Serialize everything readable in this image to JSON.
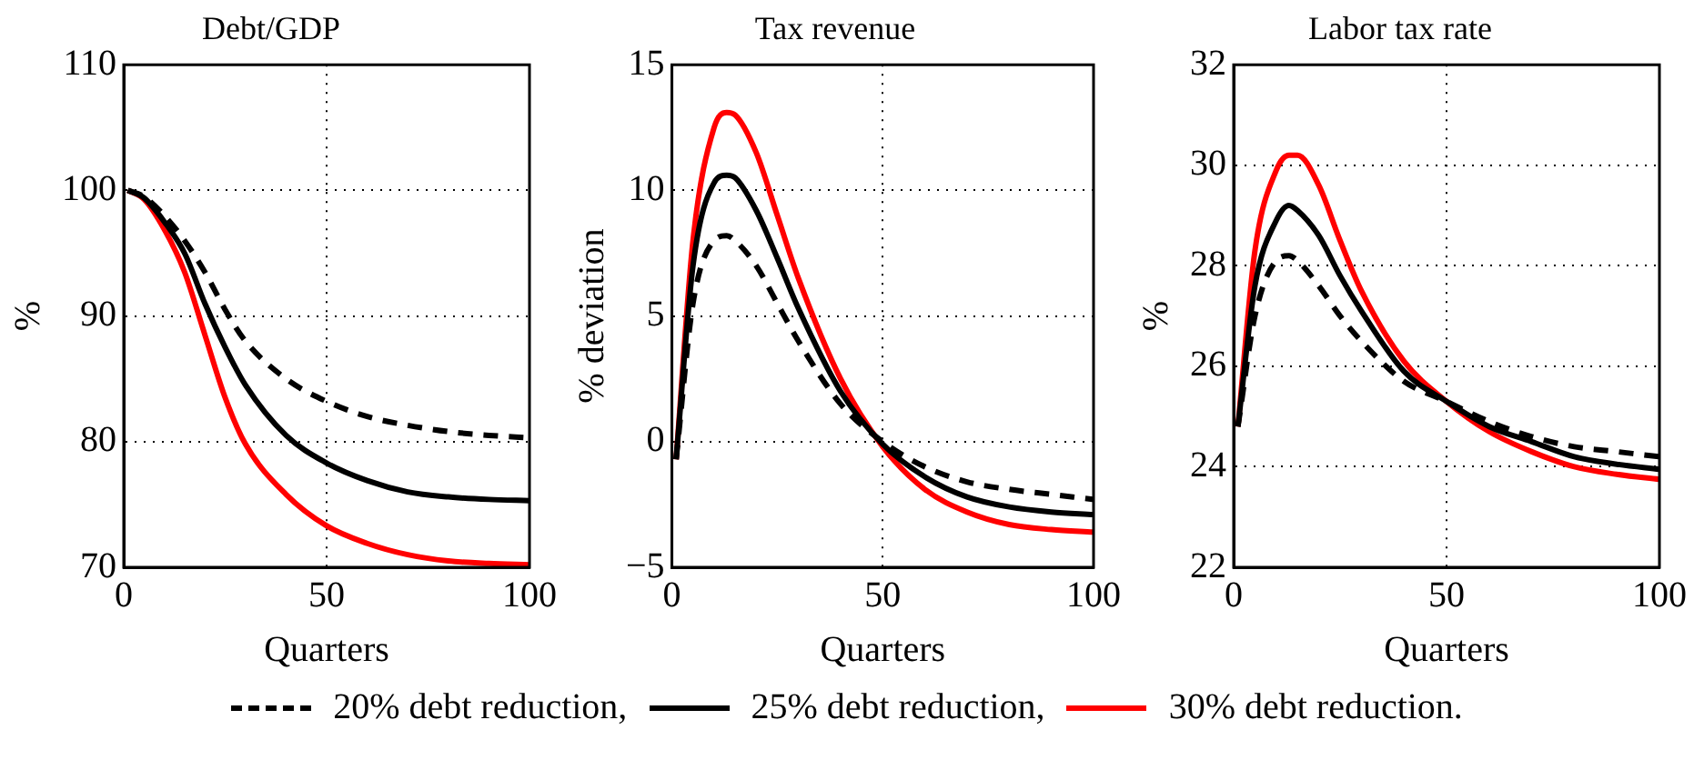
{
  "chart_data": [
    {
      "type": "line",
      "title": "Debt/GDP",
      "xlabel": "Quarters",
      "ylabel": "%",
      "x": [
        1,
        5,
        10,
        15,
        20,
        25,
        30,
        40,
        50,
        60,
        70,
        80,
        90,
        100
      ],
      "xlim": [
        0,
        100
      ],
      "xticks": [
        0,
        50,
        100
      ],
      "ylim": [
        70,
        110
      ],
      "yticks": [
        70,
        80,
        90,
        100,
        110
      ],
      "grid": true,
      "legend": "bottom",
      "marker": "none",
      "series": [
        {
          "name": "20% debt reduction,",
          "color": "#000000",
          "line_style": "dashed",
          "values": [
            100,
            99.5,
            98,
            96,
            93.5,
            90.5,
            88,
            85,
            83.2,
            82,
            81.3,
            80.8,
            80.5,
            80.3
          ]
        },
        {
          "name": "25% debt reduction,",
          "color": "#000000",
          "line_style": "solid",
          "values": [
            100,
            99.4,
            97.5,
            95,
            91,
            87.5,
            84.5,
            80.5,
            78.3,
            76.9,
            76,
            75.6,
            75.4,
            75.3
          ]
        },
        {
          "name": "30% debt reduction.",
          "color": "#ff0000",
          "line_style": "solid",
          "values": [
            100,
            99.3,
            96.9,
            93.5,
            88.5,
            83.5,
            79.8,
            75.8,
            73.3,
            71.9,
            71,
            70.5,
            70.3,
            70.2
          ]
        }
      ]
    },
    {
      "type": "line",
      "title": "Tax revenue",
      "xlabel": "Quarters",
      "ylabel": "% deviation",
      "x": [
        1,
        5,
        10,
        13,
        15,
        20,
        25,
        30,
        40,
        50,
        60,
        70,
        80,
        90,
        100
      ],
      "xlim": [
        0,
        100
      ],
      "xticks": [
        0,
        50,
        100
      ],
      "ylim": [
        -5,
        15
      ],
      "yticks": [
        -5,
        0,
        5,
        10,
        15
      ],
      "grid": true,
      "marker": "none",
      "series": [
        {
          "color": "#000000",
          "line_style": "dashed",
          "values": [
            -0.7,
            5.5,
            8,
            8.2,
            8,
            7,
            5.5,
            4,
            1.5,
            0,
            -1,
            -1.6,
            -1.9,
            -2.1,
            -2.3
          ]
        },
        {
          "color": "#000000",
          "line_style": "solid",
          "values": [
            -0.7,
            7,
            10.3,
            10.6,
            10.5,
            9.2,
            7.3,
            5.3,
            2,
            -0.1,
            -1.4,
            -2.2,
            -2.6,
            -2.8,
            -2.9
          ]
        },
        {
          "color": "#ff0000",
          "line_style": "solid",
          "values": [
            -0.7,
            8,
            12.5,
            13.1,
            13,
            11.5,
            9,
            6.5,
            2.5,
            -0.2,
            -1.9,
            -2.8,
            -3.3,
            -3.5,
            -3.6
          ]
        }
      ]
    },
    {
      "type": "line",
      "title": "Labor tax rate",
      "xlabel": "Quarters",
      "ylabel": "%",
      "x": [
        1,
        5,
        10,
        13,
        15,
        20,
        25,
        30,
        40,
        50,
        60,
        70,
        80,
        90,
        100
      ],
      "xlim": [
        0,
        100
      ],
      "xticks": [
        0,
        50,
        100
      ],
      "ylim": [
        22,
        32
      ],
      "yticks": [
        22,
        24,
        26,
        28,
        30,
        32
      ],
      "grid": true,
      "marker": "none",
      "series": [
        {
          "color": "#000000",
          "line_style": "dashed",
          "values": [
            24.8,
            27,
            28.1,
            28.2,
            28.1,
            27.6,
            27,
            26.5,
            25.7,
            25.3,
            24.9,
            24.6,
            24.4,
            24.3,
            24.2
          ]
        },
        {
          "color": "#000000",
          "line_style": "solid",
          "values": [
            24.8,
            27.6,
            28.9,
            29.2,
            29.1,
            28.6,
            27.8,
            27.1,
            25.9,
            25.3,
            24.8,
            24.5,
            24.2,
            24.05,
            23.95
          ]
        },
        {
          "color": "#ff0000",
          "line_style": "solid",
          "values": [
            24.8,
            28.3,
            29.9,
            30.2,
            30.2,
            29.6,
            28.5,
            27.5,
            26.1,
            25.3,
            24.7,
            24.3,
            24,
            23.85,
            23.75
          ]
        }
      ]
    }
  ]
}
